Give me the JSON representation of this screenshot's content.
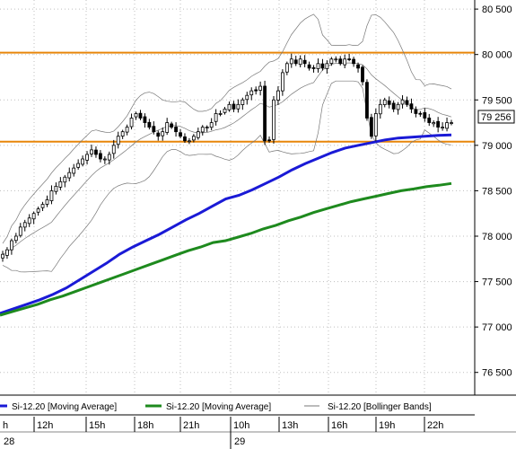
{
  "chart_data": {
    "type": "candlestick",
    "instrument": "Si-12.20",
    "y_axis": {
      "ticks": [
        "80 500",
        "80 000",
        "79 500",
        "79 000",
        "78 500",
        "78 000",
        "77 500",
        "77 000",
        "76 500"
      ],
      "tick_values": [
        80500,
        80000,
        79500,
        79000,
        78500,
        78000,
        77500,
        77000,
        76500
      ],
      "ylim": [
        76250,
        80600
      ]
    },
    "x_axis": {
      "hours": [
        "h",
        "12h",
        "15h",
        "18h",
        "21h",
        "10h",
        "13h",
        "16h",
        "19h",
        "22h"
      ],
      "dates": [
        "28",
        "29"
      ]
    },
    "horizontal_lines": [
      {
        "value": 80020,
        "color": "#e8860a"
      },
      {
        "value": 79040,
        "color": "#e8860a"
      }
    ],
    "current_price": "79 256",
    "candles_close": [
      77800,
      77850,
      77950,
      78000,
      78100,
      78150,
      78200,
      78250,
      78300,
      78350,
      78400,
      78500,
      78550,
      78600,
      78650,
      78700,
      78750,
      78800,
      78850,
      78900,
      78950,
      78900,
      78850,
      78850,
      78900,
      79000,
      79100,
      79150,
      79200,
      79300,
      79350,
      79300,
      79250,
      79200,
      79150,
      79100,
      79150,
      79250,
      79200,
      79150,
      79100,
      79050,
      79050,
      79100,
      79150,
      79200,
      79200,
      79250,
      79350,
      79350,
      79400,
      79450,
      79400,
      79450,
      79500,
      79550,
      79600,
      79600,
      79650,
      79050,
      79050,
      79500,
      79600,
      79800,
      79900,
      79950,
      79900,
      79950,
      79900,
      79850,
      79850,
      79900,
      79850,
      79900,
      79950,
      79950,
      79900,
      79950,
      79950,
      79900,
      79850,
      79700,
      79300,
      79100,
      79350,
      79450,
      79500,
      79450,
      79400,
      79450,
      79500,
      79450,
      79400,
      79350,
      79350,
      79300,
      79250,
      79250,
      79200,
      79200,
      79250,
      79250
    ],
    "series": [
      {
        "name": "Si-12.20 [Moving Average]",
        "color": "#1a1ad6",
        "values": [
          77150,
          77200,
          77250,
          77300,
          77360,
          77430,
          77520,
          77610,
          77700,
          77800,
          77880,
          77950,
          78020,
          78100,
          78180,
          78250,
          78330,
          78410,
          78450,
          78510,
          78580,
          78650,
          78730,
          78800,
          78860,
          78920,
          78970,
          79000,
          79030,
          79060,
          79080,
          79090,
          79100,
          79110,
          79115
        ]
      },
      {
        "name": "Si-12.20 [Moving Average]",
        "color": "#1e8a1e",
        "values": [
          77130,
          77170,
          77210,
          77250,
          77300,
          77340,
          77390,
          77440,
          77490,
          77540,
          77590,
          77640,
          77690,
          77740,
          77790,
          77840,
          77880,
          77930,
          77950,
          77990,
          78030,
          78080,
          78120,
          78170,
          78210,
          78260,
          78300,
          78340,
          78380,
          78410,
          78440,
          78470,
          78500,
          78520,
          78545,
          78560,
          78580
        ]
      },
      {
        "name": "Si-12.20 [Bollinger Bands]",
        "color": "#777777"
      }
    ]
  }
}
